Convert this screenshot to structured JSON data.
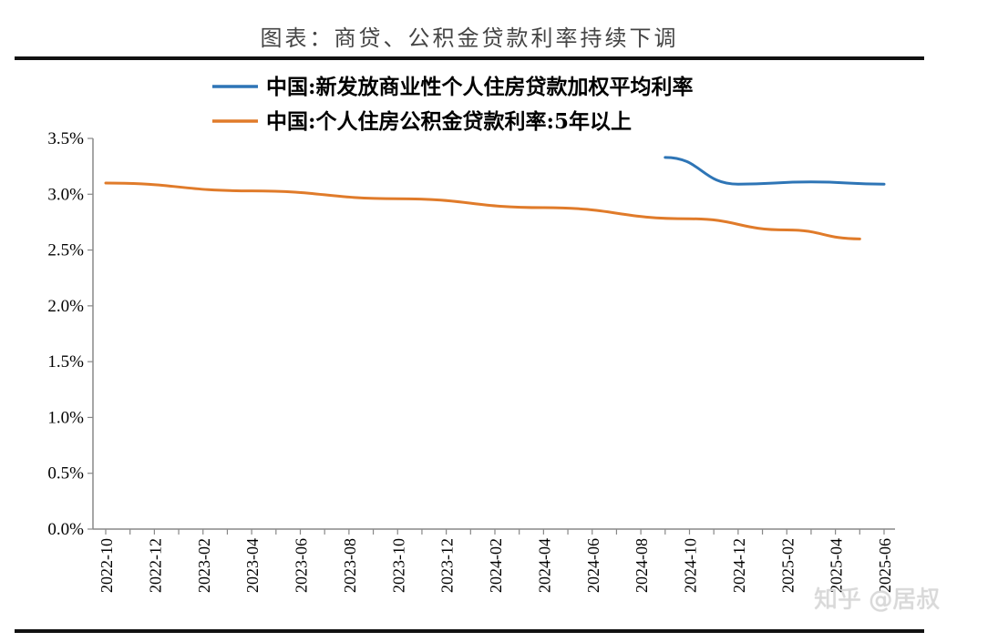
{
  "title": "图表：商贷、公积金贷款利率持续下调",
  "watermark": "知乎 @居叔",
  "chart_data": {
    "type": "line",
    "title": "图表：商贷、公积金贷款利率持续下调",
    "xlabel": "",
    "ylabel": "",
    "ylim": [
      0,
      3.5
    ],
    "yticks": [
      "0.0%",
      "0.5%",
      "1.0%",
      "1.5%",
      "2.0%",
      "2.5%",
      "3.0%",
      "3.5%"
    ],
    "x_ticks": [
      "2022-10",
      "2022-12",
      "2023-02",
      "2023-04",
      "2023-06",
      "2023-08",
      "2023-10",
      "2023-12",
      "2024-02",
      "2024-04",
      "2024-06",
      "2024-08",
      "2024-10",
      "2024-12",
      "2025-02",
      "2025-04",
      "2025-06"
    ],
    "legend_position": "top",
    "grid": false,
    "series": [
      {
        "name": "中国:新发放商业性个人住房贷款加权平均利率",
        "color": "#2E75B6",
        "points": [
          [
            "2024-09",
            3.33
          ],
          [
            "2024-12",
            3.09
          ],
          [
            "2025-03",
            3.11
          ],
          [
            "2025-06",
            3.09
          ]
        ]
      },
      {
        "name": "中国:个人住房公积金贷款利率:5年以上",
        "color": "#E07B2A",
        "points": [
          [
            "2022-10",
            3.1
          ],
          [
            "2023-04",
            3.03
          ],
          [
            "2023-10",
            2.96
          ],
          [
            "2024-04",
            2.88
          ],
          [
            "2024-10",
            2.78
          ],
          [
            "2025-02",
            2.68
          ],
          [
            "2025-05",
            2.6
          ]
        ]
      }
    ]
  }
}
